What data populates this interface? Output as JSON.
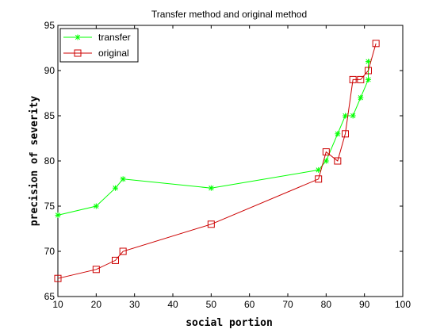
{
  "chart_data": {
    "type": "line",
    "title": "Transfer method and original method",
    "xlabel": "social portion",
    "ylabel": "precision of severity",
    "xlim": [
      10,
      100
    ],
    "ylim": [
      65,
      95
    ],
    "xticks": [
      10,
      20,
      30,
      40,
      50,
      60,
      70,
      80,
      90,
      100
    ],
    "yticks": [
      65,
      70,
      75,
      80,
      85,
      90,
      95
    ],
    "grid": false,
    "legend_position": "top-left",
    "series": [
      {
        "name": "transfer",
        "color": "#00ff00",
        "marker": "star",
        "x": [
          10,
          20,
          25,
          27,
          50,
          78,
          80,
          83,
          85,
          87,
          89,
          91,
          91
        ],
        "y": [
          74,
          75,
          77,
          78,
          77,
          79,
          80,
          83,
          85,
          85,
          87,
          89,
          91
        ]
      },
      {
        "name": "original",
        "color": "#cc0000",
        "marker": "square",
        "x": [
          10,
          20,
          25,
          27,
          50,
          78,
          80,
          83,
          85,
          87,
          89,
          91,
          93
        ],
        "y": [
          67,
          68,
          69,
          70,
          73,
          78,
          81,
          80,
          83,
          89,
          89,
          90,
          93
        ]
      }
    ]
  }
}
